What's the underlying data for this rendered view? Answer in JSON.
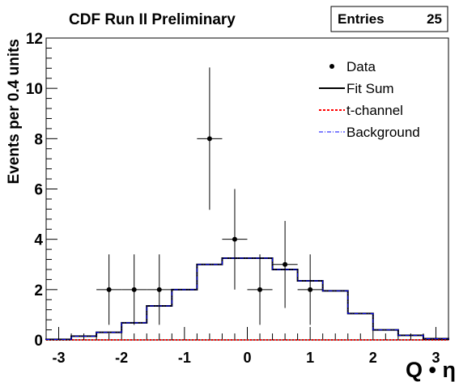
{
  "chart_data": {
    "type": "histogram",
    "title": "CDF Run II Preliminary",
    "stats": {
      "label": "Entries",
      "value": "25"
    },
    "xlabel": "Q • η",
    "ylabel": "Events per 0.4 units",
    "xlim": [
      -3.2,
      3.2
    ],
    "ylim": [
      0,
      12
    ],
    "xticks": [
      -3,
      -2,
      -1,
      0,
      1,
      2,
      3
    ],
    "yticks": [
      0,
      2,
      4,
      6,
      8,
      10,
      12
    ],
    "legend": {
      "placement": "top-right",
      "entries": [
        {
          "label": "Data",
          "style": "marker",
          "color": "#000000"
        },
        {
          "label": "Fit Sum",
          "style": "solid",
          "color": "#000000"
        },
        {
          "label": "t-channel",
          "style": "dotted",
          "color": "#ff0000"
        },
        {
          "label": "Background",
          "style": "dashdot",
          "color": "#0000ff"
        }
      ]
    },
    "data_points": [
      {
        "x": -2.2,
        "y": 2,
        "yerr": 1.4
      },
      {
        "x": -1.8,
        "y": 2,
        "yerr": 1.4
      },
      {
        "x": -1.4,
        "y": 2,
        "yerr": 1.4
      },
      {
        "x": -0.6,
        "y": 8,
        "yerr": 2.83
      },
      {
        "x": -0.2,
        "y": 4,
        "yerr": 2.0
      },
      {
        "x": 0.2,
        "y": 2,
        "yerr": 1.4
      },
      {
        "x": 0.6,
        "y": 3,
        "yerr": 1.73
      },
      {
        "x": 1.0,
        "y": 2,
        "yerr": 1.4
      }
    ],
    "bin_edges": [
      -3.2,
      -2.8,
      -2.4,
      -2.0,
      -1.6,
      -1.2,
      -0.8,
      -0.4,
      0.0,
      0.4,
      0.8,
      1.2,
      1.6,
      2.0,
      2.4,
      2.8,
      3.2
    ],
    "fit_sum": [
      0.02,
      0.15,
      0.3,
      0.68,
      1.35,
      2.0,
      3.0,
      3.25,
      3.25,
      2.8,
      2.35,
      1.95,
      1.05,
      0.4,
      0.18,
      0.05
    ],
    "t_channel": [
      0,
      0,
      0,
      0,
      0,
      0,
      0,
      0,
      0,
      0,
      0,
      0,
      0,
      0,
      0,
      0
    ],
    "background": [
      0.02,
      0.15,
      0.3,
      0.68,
      1.35,
      2.0,
      3.0,
      3.25,
      3.25,
      2.8,
      2.35,
      1.95,
      1.05,
      0.4,
      0.18,
      0.05
    ],
    "colors": {
      "fit_sum": "#000000",
      "t_channel": "#ff0000",
      "background": "#0000ff",
      "data": "#000000"
    }
  }
}
